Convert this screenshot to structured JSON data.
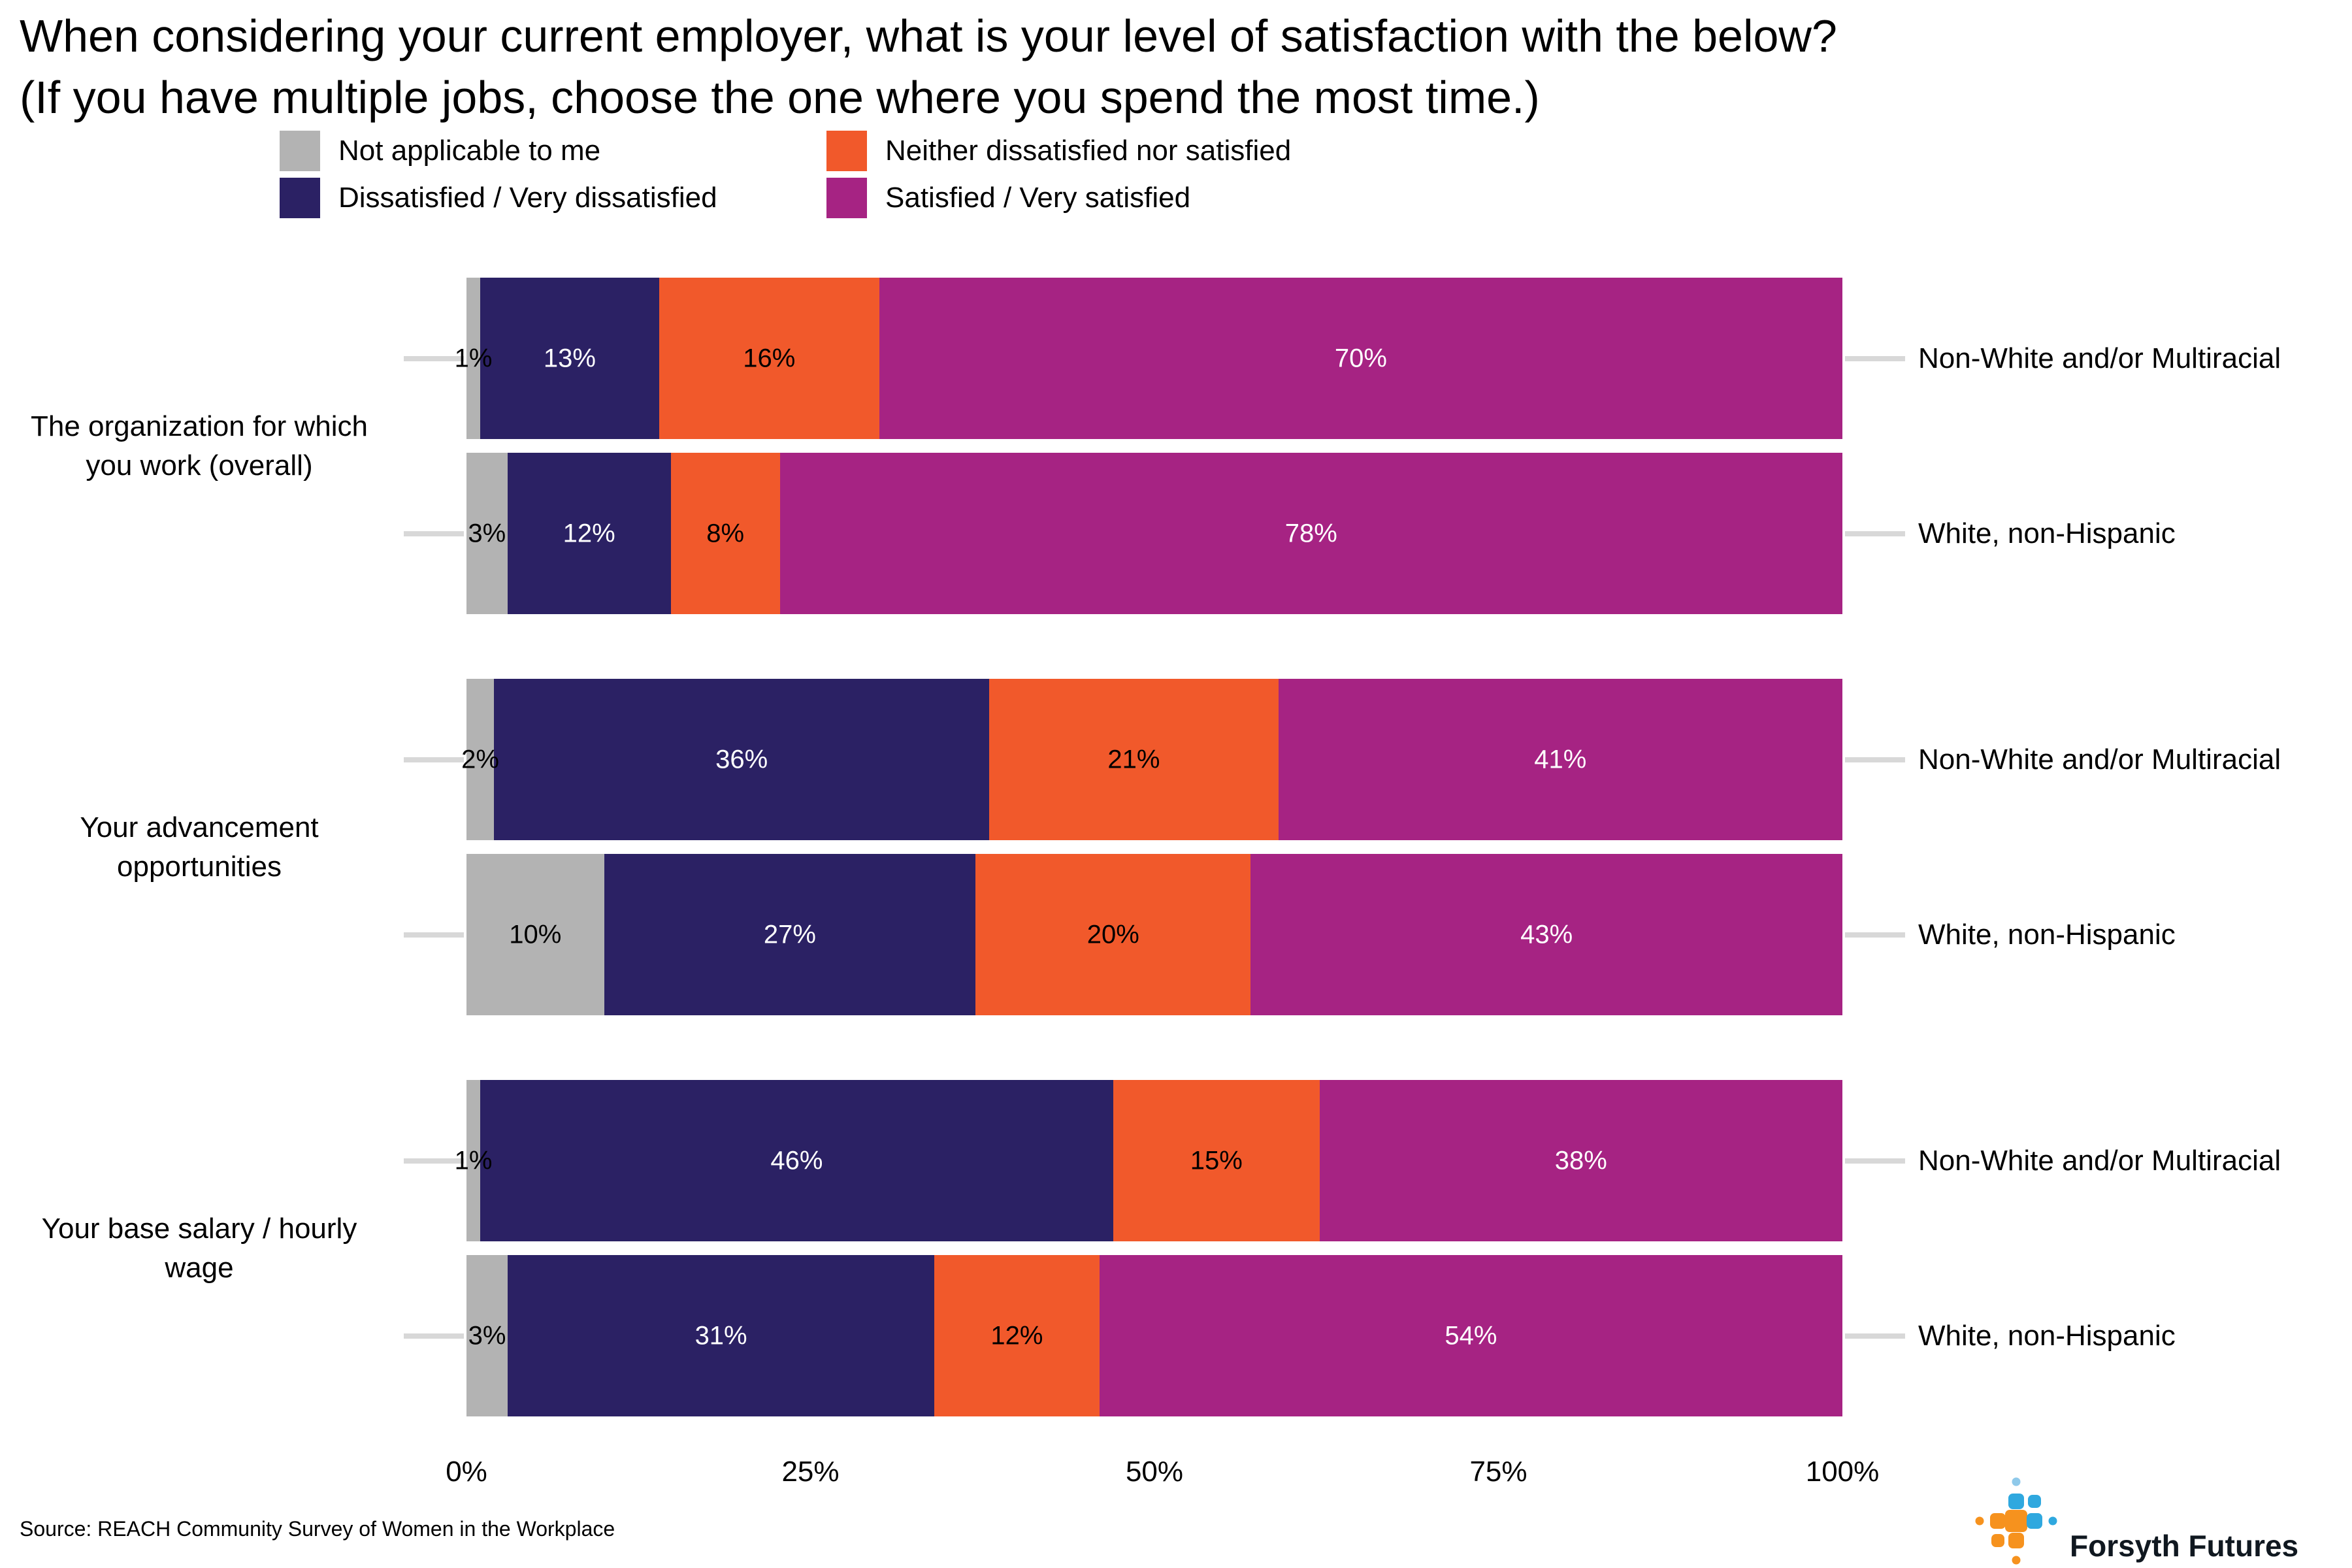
{
  "title": {
    "line1": "When considering your current employer, what is your level of satisfaction with the below?",
    "line2": "(If you have multiple jobs, choose the one where you spend the most time.)"
  },
  "legend": {
    "items": [
      {
        "label": "Not applicable to me",
        "color": "#B3B3B3"
      },
      {
        "label": "Neither dissatisfied nor satisfied",
        "color": "#F1592B"
      },
      {
        "label": "Dissatisfied / Very dissatisfied",
        "color": "#2B2164"
      },
      {
        "label": "Satisfied / Very satisfied",
        "color": "#A62383"
      }
    ]
  },
  "chart_data": {
    "type": "bar",
    "orientation": "horizontal",
    "stacked": true,
    "units": "percent",
    "grid": false,
    "xlim": [
      0,
      100
    ],
    "x_ticks": [
      "0%",
      "25%",
      "50%",
      "75%",
      "100%"
    ],
    "x_tick_values": [
      0,
      25,
      50,
      75,
      100
    ],
    "series": [
      {
        "name": "Not applicable to me",
        "color": "#B3B3B3",
        "label_color": "#000000"
      },
      {
        "name": "Dissatisfied / Very dissatisfied",
        "color": "#2B2164",
        "label_color": "#FFFFFF"
      },
      {
        "name": "Neither dissatisfied nor satisfied",
        "color": "#F1592B",
        "label_color": "#000000"
      },
      {
        "name": "Satisfied / Very satisfied",
        "color": "#A62383",
        "label_color": "#FFFFFF"
      }
    ],
    "groups": [
      {
        "category_lines": [
          "The organization for which",
          "you work (overall)"
        ],
        "bars": [
          {
            "row_label": "Non-White and/or Multiracial",
            "values": [
              1,
              13,
              16,
              70
            ],
            "display": [
              "1%",
              "13%",
              "16%",
              "70%"
            ]
          },
          {
            "row_label": "White, non-Hispanic",
            "values": [
              3,
              12,
              8,
              78
            ],
            "display": [
              "3%",
              "12%",
              "8%",
              "78%"
            ]
          }
        ]
      },
      {
        "category_lines": [
          "Your advancement",
          "opportunities"
        ],
        "bars": [
          {
            "row_label": "Non-White and/or Multiracial",
            "values": [
              2,
              36,
              21,
              41
            ],
            "display": [
              "2%",
              "36%",
              "21%",
              "41%"
            ]
          },
          {
            "row_label": "White, non-Hispanic",
            "values": [
              10,
              27,
              20,
              43
            ],
            "display": [
              "10%",
              "27%",
              "20%",
              "43%"
            ]
          }
        ]
      },
      {
        "category_lines": [
          "Your base salary / hourly",
          "wage"
        ],
        "bars": [
          {
            "row_label": "Non-White and/or Multiracial",
            "values": [
              1,
              46,
              15,
              38
            ],
            "display": [
              "1%",
              "46%",
              "15%",
              "38%"
            ]
          },
          {
            "row_label": "White, non-Hispanic",
            "values": [
              3,
              31,
              12,
              54
            ],
            "display": [
              "3%",
              "31%",
              "12%",
              "54%"
            ]
          }
        ]
      }
    ]
  },
  "source": "Source: REACH Community Survey of Women in the Workplace",
  "logo": {
    "text": "Forsyth Futures",
    "colors": {
      "orange": "#F6921E",
      "blue": "#2FA8DF",
      "light_blue": "#8FC9EA"
    }
  }
}
